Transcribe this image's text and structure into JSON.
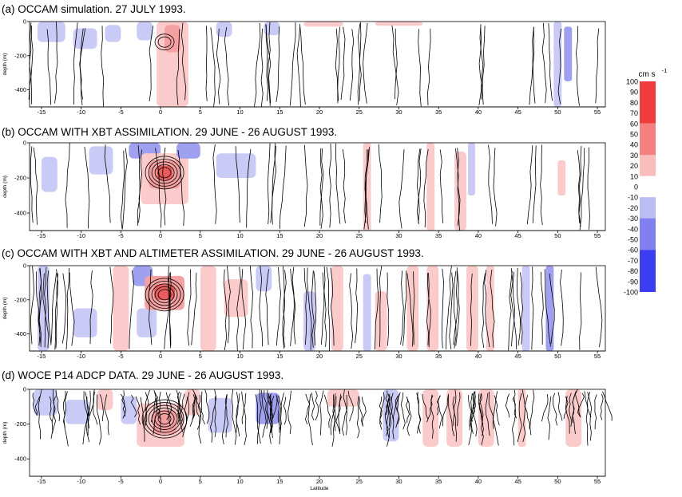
{
  "chart_data": {
    "type": "heatmap",
    "colorbar": {
      "unit": "cm s",
      "unit_exponent": "-1",
      "levels": [
        100,
        90,
        80,
        70,
        60,
        50,
        40,
        30,
        20,
        10,
        0,
        -10,
        -20,
        -30,
        -40,
        -50,
        -60,
        -70,
        -80,
        -90,
        -100
      ],
      "colors": [
        "#f03c3c",
        "#f58080",
        "#fbbcbc",
        "#ffffff",
        "#bcbcf5",
        "#8080f0",
        "#3c3cf0"
      ]
    },
    "colors": {
      "positive": [
        "#fbcaca",
        "#f4a0a0",
        "#ea5c5c"
      ],
      "negative": [
        "#cacaf6",
        "#a0a0f0",
        "#5c5cea"
      ]
    },
    "panels": [
      {
        "id": "a",
        "title": "(a) OCCAM simulation. 27 JULY 1993.",
        "ylabel": "depth (m)",
        "xlabel": "",
        "xlim": [
          -16.5,
          56
        ],
        "ylim": [
          -500,
          0
        ],
        "xticks": [
          -15,
          -10,
          -5,
          0,
          5,
          10,
          15,
          20,
          25,
          30,
          35,
          40,
          45,
          50,
          55
        ],
        "yticks": [
          0,
          -200,
          -400
        ],
        "ytick_labels": [
          "0",
          "-200",
          "-400"
        ],
        "data_bottom": -500,
        "cells": [
          {
            "lat": [
              -15.5,
              -12
            ],
            "depth": [
              0,
              -120
            ],
            "v": -20
          },
          {
            "lat": [
              -11,
              -8
            ],
            "depth": [
              -40,
              -160
            ],
            "v": -20
          },
          {
            "lat": [
              -7,
              -5
            ],
            "depth": [
              -20,
              -120
            ],
            "v": -20
          },
          {
            "lat": [
              -3,
              -1
            ],
            "depth": [
              0,
              -110
            ],
            "v": -20
          },
          {
            "lat": [
              -0.5,
              3.5
            ],
            "depth": [
              0,
              -500
            ],
            "v": 20
          },
          {
            "lat": [
              0.5,
              2.5
            ],
            "depth": [
              -20,
              -180
            ],
            "v": 30
          },
          {
            "lat": [
              7,
              9
            ],
            "depth": [
              0,
              -90
            ],
            "v": -20
          },
          {
            "lat": [
              13,
              15
            ],
            "depth": [
              0,
              -80
            ],
            "v": -20
          },
          {
            "lat": [
              18,
              23
            ],
            "depth": [
              0,
              -30
            ],
            "v": 20
          },
          {
            "lat": [
              27,
              33
            ],
            "depth": [
              0,
              -25
            ],
            "v": 20
          },
          {
            "lat": [
              49.5,
              50.5
            ],
            "depth": [
              0,
              -500
            ],
            "v": -20
          },
          {
            "lat": [
              50.8,
              51.8
            ],
            "depth": [
              -30,
              -350
            ],
            "v": -30
          }
        ]
      },
      {
        "id": "b",
        "title": "(b) OCCAM WITH XBT ASSIMILATION.  29 JUNE - 26 AUGUST 1993.",
        "ylabel": "depth (m)",
        "xlabel": "",
        "xlim": [
          -16.5,
          56
        ],
        "ylim": [
          -500,
          0
        ],
        "xticks": [
          -15,
          -10,
          -5,
          0,
          5,
          10,
          15,
          20,
          25,
          30,
          35,
          40,
          45,
          50,
          55
        ],
        "yticks": [
          0,
          -200,
          -400
        ],
        "ytick_labels": [
          "0",
          "-200",
          "-400"
        ],
        "data_bottom": -500,
        "cells": [
          {
            "lat": [
              -15,
              -13
            ],
            "depth": [
              -80,
              -280
            ],
            "v": -20
          },
          {
            "lat": [
              -9,
              -6
            ],
            "depth": [
              -20,
              -180
            ],
            "v": -20
          },
          {
            "lat": [
              -4,
              0
            ],
            "depth": [
              0,
              -90
            ],
            "v": -40
          },
          {
            "lat": [
              -2.5,
              3.5
            ],
            "depth": [
              -60,
              -350
            ],
            "v": 20
          },
          {
            "lat": [
              -1.5,
              2.5
            ],
            "depth": [
              -100,
              -260
            ],
            "v": 40
          },
          {
            "lat": [
              -0.5,
              1.5
            ],
            "depth": [
              -130,
              -210
            ],
            "v": 60
          },
          {
            "lat": [
              2,
              5
            ],
            "depth": [
              0,
              -90
            ],
            "v": -30
          },
          {
            "lat": [
              7,
              12
            ],
            "depth": [
              -60,
              -200
            ],
            "v": -20
          },
          {
            "lat": [
              25.5,
              26.5
            ],
            "depth": [
              0,
              -500
            ],
            "v": 20
          },
          {
            "lat": [
              33.5,
              34.5
            ],
            "depth": [
              0,
              -500
            ],
            "v": 20
          },
          {
            "lat": [
              37,
              38.5
            ],
            "depth": [
              -50,
              -500
            ],
            "v": 20
          },
          {
            "lat": [
              38.7,
              39.6
            ],
            "depth": [
              0,
              -300
            ],
            "v": -20
          },
          {
            "lat": [
              50,
              51
            ],
            "depth": [
              -100,
              -300
            ],
            "v": 20
          }
        ]
      },
      {
        "id": "c",
        "title": "(c) OCCAM WITH XBT AND ALTIMETER ASSIMILATION.  29 JUNE - 26 AUGUST 1993.",
        "ylabel": "depth (m)",
        "xlabel": "",
        "xlim": [
          -16.5,
          56
        ],
        "ylim": [
          -500,
          0
        ],
        "xticks": [
          -15,
          -10,
          -5,
          0,
          5,
          10,
          15,
          20,
          25,
          30,
          35,
          40,
          45,
          50,
          55
        ],
        "yticks": [
          0,
          -200,
          -400
        ],
        "ytick_labels": [
          "0",
          "-200",
          "-400"
        ],
        "data_bottom": -500,
        "cells": [
          {
            "lat": [
              -15.5,
              -14
            ],
            "depth": [
              0,
              -500
            ],
            "v": -20
          },
          {
            "lat": [
              -11,
              -8
            ],
            "depth": [
              -250,
              -420
            ],
            "v": -20
          },
          {
            "lat": [
              -6,
              -4
            ],
            "depth": [
              0,
              -500
            ],
            "v": 20
          },
          {
            "lat": [
              -3.5,
              -1
            ],
            "depth": [
              0,
              -120
            ],
            "v": -40
          },
          {
            "lat": [
              -3,
              -0.5
            ],
            "depth": [
              -250,
              -420
            ],
            "v": -20
          },
          {
            "lat": [
              -2,
              3
            ],
            "depth": [
              -60,
              -260
            ],
            "v": 30
          },
          {
            "lat": [
              -0.8,
              1.8
            ],
            "depth": [
              -110,
              -200
            ],
            "v": 60
          },
          {
            "lat": [
              5,
              7
            ],
            "depth": [
              0,
              -500
            ],
            "v": 20
          },
          {
            "lat": [
              8,
              11
            ],
            "depth": [
              -80,
              -300
            ],
            "v": 20
          },
          {
            "lat": [
              12,
              14
            ],
            "depth": [
              0,
              -150
            ],
            "v": -20
          },
          {
            "lat": [
              18,
              19.5
            ],
            "depth": [
              -150,
              -500
            ],
            "v": -20
          },
          {
            "lat": [
              21.5,
              23
            ],
            "depth": [
              0,
              -500
            ],
            "v": 20
          },
          {
            "lat": [
              25.5,
              26.5
            ],
            "depth": [
              -50,
              -500
            ],
            "v": -20
          },
          {
            "lat": [
              27,
              28.5
            ],
            "depth": [
              -150,
              -500
            ],
            "v": 20
          },
          {
            "lat": [
              31,
              32.5
            ],
            "depth": [
              0,
              -500
            ],
            "v": 20
          },
          {
            "lat": [
              33.5,
              35
            ],
            "depth": [
              0,
              -500
            ],
            "v": 20
          },
          {
            "lat": [
              38.5,
              40
            ],
            "depth": [
              0,
              -500
            ],
            "v": 20
          },
          {
            "lat": [
              41,
              42
            ],
            "depth": [
              0,
              -500
            ],
            "v": 20
          },
          {
            "lat": [
              45.5,
              46.5
            ],
            "depth": [
              0,
              -500
            ],
            "v": -20
          },
          {
            "lat": [
              48.5,
              49.5
            ],
            "depth": [
              0,
              -500
            ],
            "v": -30
          }
        ]
      },
      {
        "id": "d",
        "title": "(d) WOCE P14 ADCP DATA. 29 JUNE - 26 AUGUST 1993.",
        "ylabel": "depth (m)",
        "xlabel": "Latitude",
        "xlim": [
          -16.5,
          56
        ],
        "ylim": [
          -500,
          0
        ],
        "xticks": [
          -15,
          -10,
          -5,
          0,
          5,
          10,
          15,
          20,
          25,
          30,
          35,
          40,
          45,
          50,
          55
        ],
        "yticks": [
          0,
          -200,
          -400
        ],
        "ytick_labels": [
          "0",
          "-200",
          "-400"
        ],
        "data_bottom": -330,
        "cells": [
          {
            "lat": [
              -16,
              -13
            ],
            "depth": [
              0,
              -150
            ],
            "v": -20
          },
          {
            "lat": [
              -12,
              -9
            ],
            "depth": [
              -60,
              -200
            ],
            "v": -20
          },
          {
            "lat": [
              -8,
              -6
            ],
            "depth": [
              0,
              -120
            ],
            "v": 20
          },
          {
            "lat": [
              -5,
              -3
            ],
            "depth": [
              -40,
              -200
            ],
            "v": -20
          },
          {
            "lat": [
              -3,
              3
            ],
            "depth": [
              -80,
              -330
            ],
            "v": 20
          },
          {
            "lat": [
              -1,
              2
            ],
            "depth": [
              -120,
              -260
            ],
            "v": 40
          },
          {
            "lat": [
              3,
              5
            ],
            "depth": [
              0,
              -150
            ],
            "v": 20
          },
          {
            "lat": [
              6,
              9
            ],
            "depth": [
              -50,
              -250
            ],
            "v": -20
          },
          {
            "lat": [
              12,
              15
            ],
            "depth": [
              -20,
              -200
            ],
            "v": -30
          },
          {
            "lat": [
              21,
              25
            ],
            "depth": [
              0,
              -100
            ],
            "v": 20
          },
          {
            "lat": [
              28,
              30
            ],
            "depth": [
              0,
              -300
            ],
            "v": -20
          },
          {
            "lat": [
              33,
              35
            ],
            "depth": [
              0,
              -330
            ],
            "v": 20
          },
          {
            "lat": [
              36,
              38
            ],
            "depth": [
              0,
              -330
            ],
            "v": 20
          },
          {
            "lat": [
              40,
              42
            ],
            "depth": [
              0,
              -330
            ],
            "v": 20
          },
          {
            "lat": [
              45,
              46
            ],
            "depth": [
              0,
              -330
            ],
            "v": 20
          },
          {
            "lat": [
              51,
              53
            ],
            "depth": [
              0,
              -330
            ],
            "v": 20
          }
        ]
      }
    ]
  }
}
